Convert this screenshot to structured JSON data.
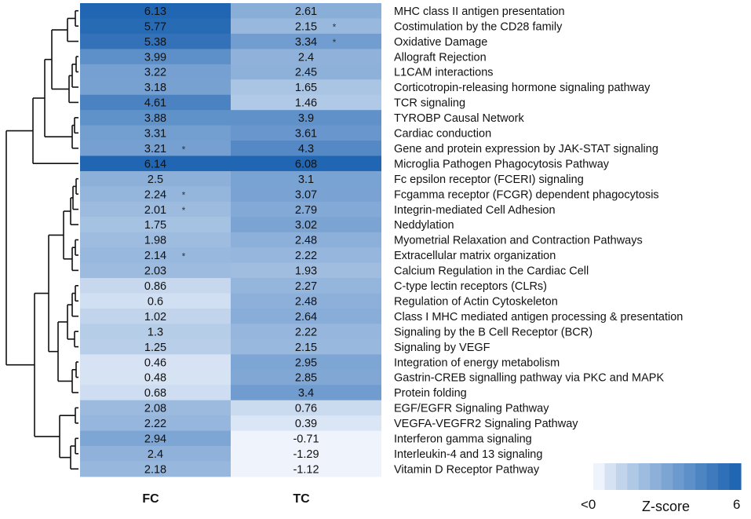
{
  "chart_data": {
    "type": "heatmap",
    "title": "",
    "columns": [
      "FC",
      "TC"
    ],
    "rows": [
      {
        "label": "MHC class II antigen presentation",
        "fc": 6.13,
        "tc": 2.61,
        "fc_sig": false,
        "tc_sig": false
      },
      {
        "label": "Costimulation by the CD28 family",
        "fc": 5.77,
        "tc": 2.15,
        "fc_sig": false,
        "tc_sig": true
      },
      {
        "label": "Oxidative Damage",
        "fc": 5.38,
        "tc": 3.34,
        "fc_sig": false,
        "tc_sig": true
      },
      {
        "label": "Allograft Rejection",
        "fc": 3.99,
        "tc": 2.4,
        "fc_sig": false,
        "tc_sig": false
      },
      {
        "label": "L1CAM interactions",
        "fc": 3.22,
        "tc": 2.45,
        "fc_sig": false,
        "tc_sig": false
      },
      {
        "label": "Corticotropin-releasing hormone signaling pathway",
        "fc": 3.18,
        "tc": 1.65,
        "fc_sig": false,
        "tc_sig": false
      },
      {
        "label": "TCR signaling",
        "fc": 4.61,
        "tc": 1.46,
        "fc_sig": false,
        "tc_sig": false
      },
      {
        "label": "TYROBP Causal Network",
        "fc": 3.88,
        "tc": 3.9,
        "fc_sig": false,
        "tc_sig": false
      },
      {
        "label": "Cardiac conduction",
        "fc": 3.31,
        "tc": 3.61,
        "fc_sig": false,
        "tc_sig": false
      },
      {
        "label": "Gene and protein expression by JAK-STAT signaling",
        "fc": 3.21,
        "tc": 4.3,
        "fc_sig": true,
        "tc_sig": false
      },
      {
        "label": "Microglia Pathogen Phagocytosis Pathway",
        "fc": 6.14,
        "tc": 6.08,
        "fc_sig": false,
        "tc_sig": false
      },
      {
        "label": "Fc epsilon receptor (FCERI) signaling",
        "fc": 2.5,
        "tc": 3.1,
        "fc_sig": false,
        "tc_sig": false
      },
      {
        "label": "Fcgamma receptor (FCGR) dependent phagocytosis",
        "fc": 2.24,
        "tc": 3.07,
        "fc_sig": true,
        "tc_sig": false
      },
      {
        "label": "Integrin-mediated Cell Adhesion",
        "fc": 2.01,
        "tc": 2.79,
        "fc_sig": true,
        "tc_sig": false
      },
      {
        "label": "Neddylation",
        "fc": 1.75,
        "tc": 3.02,
        "fc_sig": false,
        "tc_sig": false
      },
      {
        "label": "Myometrial Relaxation and Contraction Pathways",
        "fc": 1.98,
        "tc": 2.48,
        "fc_sig": false,
        "tc_sig": false
      },
      {
        "label": "Extracellular matrix organization",
        "fc": 2.14,
        "tc": 2.22,
        "fc_sig": true,
        "tc_sig": false
      },
      {
        "label": "Calcium Regulation in the Cardiac Cell",
        "fc": 2.03,
        "tc": 1.93,
        "fc_sig": false,
        "tc_sig": false
      },
      {
        "label": "C-type lectin receptors (CLRs)",
        "fc": 0.86,
        "tc": 2.27,
        "fc_sig": false,
        "tc_sig": false
      },
      {
        "label": "Regulation of Actin Cytoskeleton",
        "fc": 0.6,
        "tc": 2.48,
        "fc_sig": false,
        "tc_sig": false
      },
      {
        "label": "Class I MHC mediated antigen processing & presentation",
        "fc": 1.02,
        "tc": 2.64,
        "fc_sig": false,
        "tc_sig": false
      },
      {
        "label": "Signaling by the B Cell Receptor (BCR)",
        "fc": 1.3,
        "tc": 2.22,
        "fc_sig": false,
        "tc_sig": false
      },
      {
        "label": "Signaling by VEGF",
        "fc": 1.25,
        "tc": 2.15,
        "fc_sig": false,
        "tc_sig": false
      },
      {
        "label": "Integration of energy metabolism",
        "fc": 0.46,
        "tc": 2.95,
        "fc_sig": false,
        "tc_sig": false
      },
      {
        "label": "Gastrin-CREB signalling pathway via PKC and MAPK",
        "fc": 0.48,
        "tc": 2.85,
        "fc_sig": false,
        "tc_sig": false
      },
      {
        "label": "Protein folding",
        "fc": 0.68,
        "tc": 3.4,
        "fc_sig": false,
        "tc_sig": false
      },
      {
        "label": "EGF/EGFR Signaling Pathway",
        "fc": 2.08,
        "tc": 0.76,
        "fc_sig": false,
        "tc_sig": false
      },
      {
        "label": "VEGFA-VEGFR2 Signaling Pathway",
        "fc": 2.22,
        "tc": 0.39,
        "fc_sig": false,
        "tc_sig": false
      },
      {
        "label": "Interferon gamma signaling",
        "fc": 2.94,
        "tc": -0.71,
        "fc_sig": false,
        "tc_sig": false
      },
      {
        "label": "Interleukin-4 and 13 signaling",
        "fc": 2.4,
        "tc": -1.29,
        "fc_sig": false,
        "tc_sig": false
      },
      {
        "label": "Vitamin D Receptor Pathway",
        "fc": 2.18,
        "tc": -1.12,
        "fc_sig": false,
        "tc_sig": false
      }
    ],
    "significance_marker": "*",
    "color_scale": {
      "min_label": "<0",
      "max_label": "6",
      "title": "Z-score",
      "domain": [
        0,
        6
      ],
      "low_color": "#eef3fc",
      "high_color": "#2166b3",
      "steps": 13
    },
    "dendrogram": {
      "leaf_order": "rows",
      "clusters": [
        [
          [
            0,
            1
          ],
          2
        ],
        [
          [
            [
              [
                3,
                4
              ],
              5
            ],
            6
          ]
        ],
        [
          [
            7,
            8
          ],
          9
        ],
        [
          10
        ],
        [
          [
            [
              11,
              12
            ],
            13
          ],
          14
        ],
        [
          [
            15,
            16
          ],
          17
        ],
        [
          [
            18,
            19
          ],
          20
        ],
        [
          [
            21,
            22
          ]
        ],
        [
          [
            23,
            24
          ],
          25
        ],
        [
          [
            26,
            27
          ]
        ],
        [
          [
            28,
            29
          ],
          30
        ]
      ]
    }
  }
}
